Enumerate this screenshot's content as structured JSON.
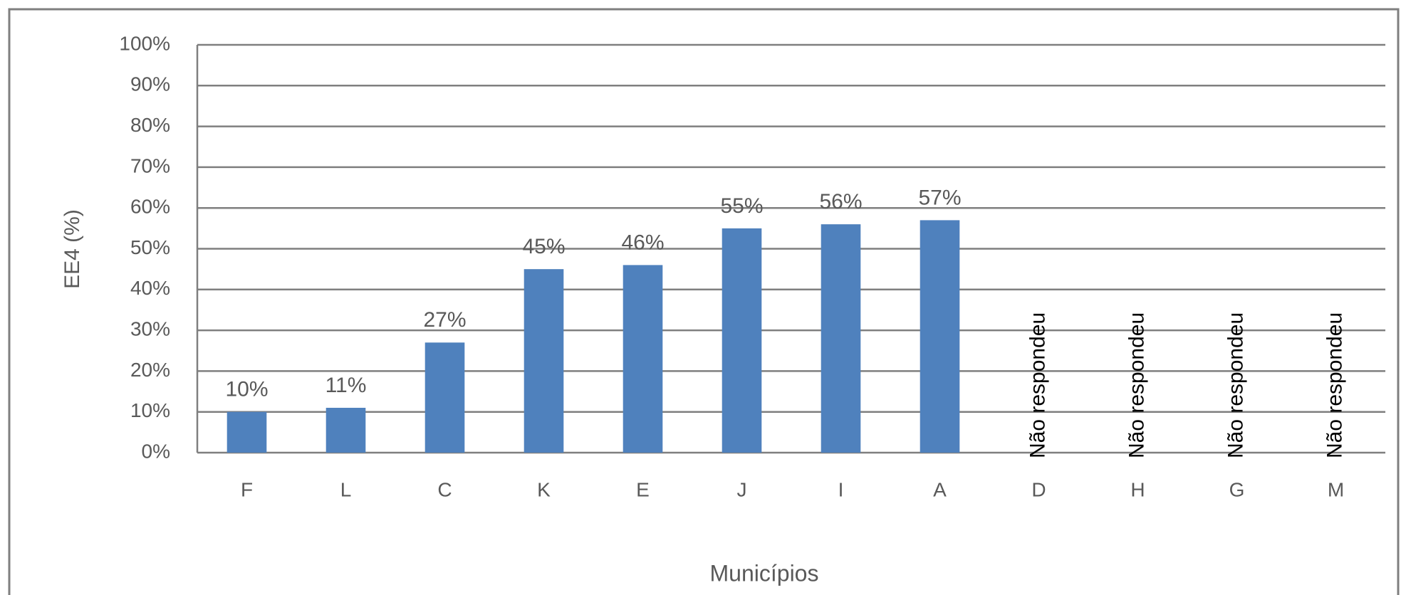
{
  "chart_data": {
    "type": "bar",
    "x_label": "Municípios",
    "y_label": "EE4 (%)",
    "categories": [
      "F",
      "L",
      "C",
      "K",
      "E",
      "J",
      "I",
      "A",
      "D",
      "H",
      "G",
      "M"
    ],
    "values": [
      10,
      11,
      27,
      45,
      46,
      55,
      56,
      57,
      null,
      null,
      null,
      null
    ],
    "value_labels": [
      "10%",
      "11%",
      "27%",
      "45%",
      "46%",
      "55%",
      "56%",
      "57%",
      "Não respondeu",
      "Não respondeu",
      "Não respondeu",
      "Não respondeu"
    ],
    "color": "#4f81bd",
    "ylim": [
      0,
      100
    ],
    "yticks": [
      {
        "value": 0,
        "label": "0%"
      },
      {
        "value": 10,
        "label": "10%"
      },
      {
        "value": 20,
        "label": "20%"
      },
      {
        "value": 30,
        "label": "30%"
      },
      {
        "value": 40,
        "label": "40%"
      },
      {
        "value": 50,
        "label": "50%"
      },
      {
        "value": 60,
        "label": "60%"
      },
      {
        "value": 70,
        "label": "70%"
      },
      {
        "value": 80,
        "label": "80%"
      },
      {
        "value": 90,
        "label": "90%"
      },
      {
        "value": 100,
        "label": "100%"
      }
    ],
    "grid": true
  }
}
